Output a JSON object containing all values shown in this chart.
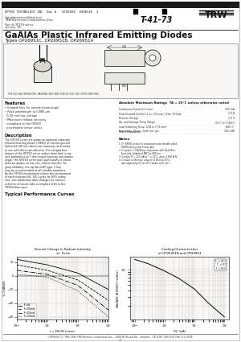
{
  "page_bg": "#ffffff",
  "header_bg": "#f0f0f0",
  "title_main": "GaAlAs Plastic Infrared Emitting Diodes",
  "title_sub": "Types OP269S1C, OP269S1B, OP269S1A",
  "header_line1": "OPTEK TECHNOLOGY INC  Doc #   4796500  0300126  2",
  "header_sub1": "Optoelectronics/Detectors",
  "header_sub2": "TRW Electronic Components Divs.",
  "header_sub3": "Part # OP269 series",
  "header_sub4": "January '85",
  "model_num": "T-41-73",
  "features_title": "Features",
  "features": [
    "Integral lens for narrow beam angle",
    "Peak wavelength at 0.880 μm",
    "0.25 mm low voltage",
    "Maximum radiant intensity",
    "compliant to the OP269",
    "placeholder driver series"
  ],
  "description_title": "Description",
  "abs_max_title": "Absolute Maximum Ratings  TA = 25°C unless otherwise noted",
  "abs_items": [
    [
      "Continuous Forward Current",
      "100 mA"
    ],
    [
      "Peak Forward Current (1 us, 2% maximum 1 kHz, 500 peak)",
      "3.0 A"
    ],
    [
      "Reverse Voltage",
      "2.0 V"
    ],
    [
      "Operating and Storage Temperature Range",
      "-55°C to +100°C"
    ],
    [
      "Lead Soldering Temperature 5/16 inch (7.9 mm) from body, 10 sec., both including pin",
      "+260°C"
    ],
    [
      "Power Dissipation",
      "100 mW"
    ]
  ],
  "notes_title": "Notes",
  "typ_perf_title": "Typical Performance Curves",
  "graph1_title": "Percent Change in Radiant Intensity\nvs. Pulse",
  "graph2_title": "Cooling Characteristics\nof OP269S1B and OP269S1",
  "graph1_xlabel": "t = PULSE (msec)",
  "graph1_ylabel": "% CHANGE",
  "graph2_xlabel": "DC (mA)",
  "graph2_ylabel": "RADIANT INTENSITY (mW/sr)",
  "footer": "COPYRIGHT (C) TRW, 1984  TRW Electronic Components Divs.,  10900 W. Rhoads Rd.,  Camarillo,  C A 11365  (805) 435-7166  B 1-10058"
}
